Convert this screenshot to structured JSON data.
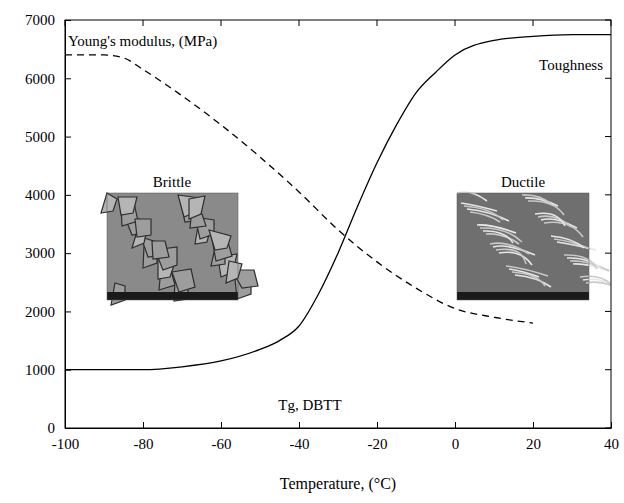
{
  "chart_data": {
    "type": "line",
    "x_label": "Temperature, (°C)",
    "xlim": [
      -100,
      40
    ],
    "xticks": [
      -100,
      -80,
      -60,
      -40,
      -20,
      0,
      20,
      40
    ],
    "ylim": [
      0,
      7000
    ],
    "yticks": [
      0,
      1000,
      2000,
      3000,
      4000,
      5000,
      6000,
      7000
    ],
    "grid": false,
    "series": [
      {
        "name": "Young's modulus, (MPa)",
        "color": "#000000",
        "line_style": "dashed",
        "x": [
          -100,
          -90,
          -85,
          -80,
          -70,
          -60,
          -50,
          -40,
          -30,
          -20,
          -10,
          0,
          10,
          20
        ],
        "values": [
          6400,
          6400,
          6350,
          6150,
          5700,
          5200,
          4650,
          4050,
          3400,
          2850,
          2400,
          2050,
          1900,
          1800
        ]
      },
      {
        "name": "Toughness",
        "color": "#000000",
        "line_style": "solid",
        "x": [
          -100,
          -90,
          -80,
          -70,
          -60,
          -50,
          -45,
          -40,
          -35,
          -30,
          -25,
          -20,
          -15,
          -10,
          -5,
          0,
          10,
          20,
          30,
          40
        ],
        "values": [
          1000,
          1000,
          1000,
          1050,
          1150,
          1350,
          1500,
          1750,
          2300,
          3000,
          3800,
          4550,
          5200,
          5750,
          6100,
          6400,
          6650,
          6720,
          6750,
          6750
        ]
      }
    ],
    "annotations": [
      "Tg, DBTT",
      "Brittle",
      "Ductile"
    ]
  }
}
